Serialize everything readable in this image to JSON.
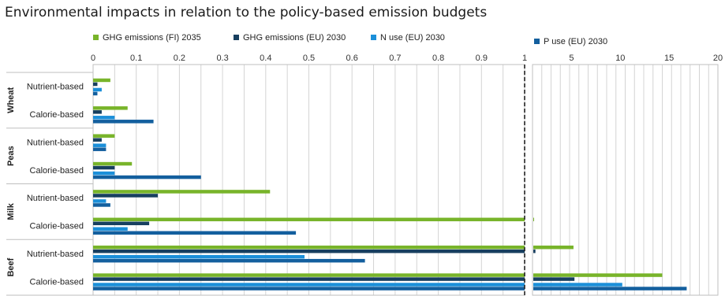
{
  "title": "Environmental impacts in relation to the policy-based emission budgets",
  "colors": {
    "ghg_fi": "#78b42a",
    "ghg_eu": "#173f5f",
    "n_use": "#1b8fd9",
    "p_use": "#135f9e",
    "grid": "#d4d4d4",
    "axis": "#bfbfbf",
    "dash": "#222222"
  },
  "chart_data": {
    "type": "bar",
    "orientation": "horizontal",
    "title": "Environmental impacts in relation to the policy-based emission budgets",
    "groups": [
      {
        "name": "Wheat",
        "categories": [
          "Nutrient-based",
          "Calorie-based"
        ]
      },
      {
        "name": "Peas",
        "categories": [
          "Nutrient-based",
          "Calorie-based"
        ]
      },
      {
        "name": "Milk",
        "categories": [
          "Nutrient-based",
          "Calorie-based"
        ]
      },
      {
        "name": "Beef",
        "categories": [
          "Nutrient-based",
          "Calorie-based"
        ]
      }
    ],
    "series": [
      {
        "name": "GHG emissions (FI) 2035",
        "color_key": "ghg_fi",
        "values": [
          0.04,
          0.08,
          0.05,
          0.09,
          0.41,
          1.1,
          5.2,
          14.3
        ]
      },
      {
        "name": "GHG emissions (EU) 2030",
        "color_key": "ghg_eu",
        "values": [
          0.01,
          0.02,
          0.02,
          0.05,
          0.15,
          0.13,
          1.3,
          5.3
        ]
      },
      {
        "name": "N use (EU) 2030",
        "color_key": "n_use",
        "values": [
          0.02,
          0.05,
          0.03,
          0.05,
          0.03,
          0.08,
          0.49,
          10.2
        ]
      },
      {
        "name": "P use (EU) 2030",
        "color_key": "p_use",
        "values": [
          0.01,
          0.14,
          0.03,
          0.25,
          0.04,
          0.47,
          0.63,
          16.8
        ]
      }
    ],
    "axis_left": {
      "min": 0,
      "max": 1,
      "ticks": [
        "0",
        "0.1",
        "0.2",
        "0.3",
        "0.4",
        "0.5",
        "0.6",
        "0.7",
        "0.8",
        "0.9",
        "1"
      ]
    },
    "axis_right": {
      "min": 1,
      "max": 20,
      "ticks": [
        "5",
        "10",
        "15",
        "20"
      ]
    },
    "reference_line": 1,
    "legend_position": "top",
    "grid": true
  }
}
